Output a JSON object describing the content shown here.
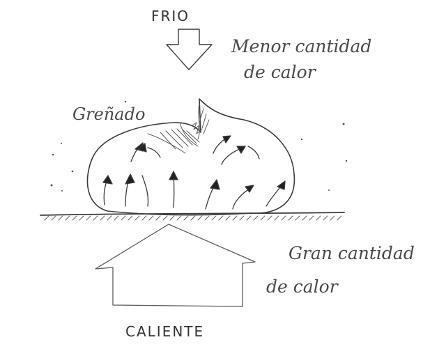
{
  "labels": {
    "cold": "FRIO",
    "less_heat_line1": "Menor cantidad",
    "less_heat_line2": "de calor",
    "bloom": "Greñado",
    "more_heat_line1": "Gran cantidad",
    "more_heat_line2": "de calor",
    "hot": "CALIENTE"
  },
  "colors": {
    "pencil": "#3c3c3c",
    "background": "#ffffff"
  }
}
